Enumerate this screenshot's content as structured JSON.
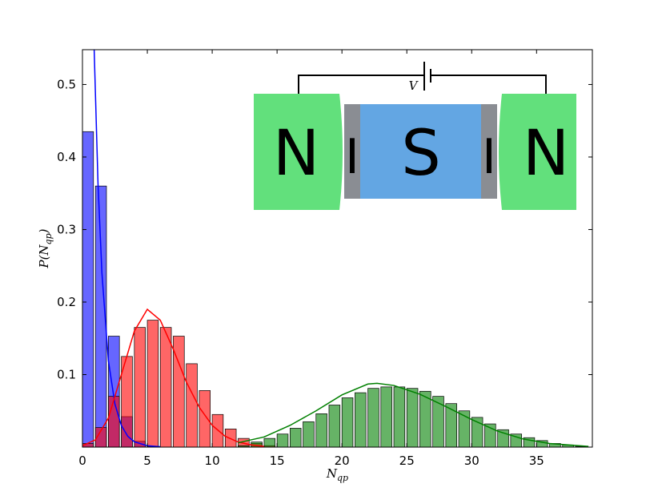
{
  "chart_data": {
    "type": "histogram",
    "xlabel": [
      "N",
      "qp"
    ],
    "ylabel": [
      "P(N",
      "qp",
      ")"
    ],
    "xlim": [
      0,
      39.3
    ],
    "ylim": [
      0,
      0.548
    ],
    "xticks": [
      0,
      5,
      10,
      15,
      20,
      25,
      30,
      35
    ],
    "yticks": [
      0.1,
      0.2,
      0.3,
      0.4,
      0.5
    ],
    "grid": false,
    "series": [
      {
        "color": "#0000ff",
        "bins": [
          0,
          1,
          2,
          3,
          4,
          5,
          6
        ],
        "values": [
          0.435,
          0.36,
          0.153,
          0.042,
          0.008,
          0.001
        ]
      },
      {
        "color": "#ff0000",
        "bins": [
          0,
          1,
          2,
          3,
          4,
          5,
          6,
          7,
          8,
          9,
          10,
          11,
          12,
          13,
          14,
          15
        ],
        "values": [
          0.005,
          0.027,
          0.07,
          0.125,
          0.165,
          0.175,
          0.165,
          0.153,
          0.115,
          0.078,
          0.045,
          0.025,
          0.012,
          0.005,
          0.002
        ]
      },
      {
        "color": "#008000",
        "bins": [
          12,
          13,
          14,
          15,
          16,
          17,
          18,
          19,
          20,
          21,
          22,
          23,
          24,
          25,
          26,
          27,
          28,
          29,
          30,
          31,
          32,
          33,
          34,
          35,
          36,
          37,
          38,
          39
        ],
        "values": [
          0.002,
          0.007,
          0.012,
          0.018,
          0.026,
          0.035,
          0.046,
          0.058,
          0.068,
          0.075,
          0.081,
          0.083,
          0.083,
          0.081,
          0.077,
          0.07,
          0.06,
          0.05,
          0.041,
          0.032,
          0.024,
          0.018,
          0.013,
          0.009,
          0.005,
          0.003,
          0.001
        ]
      }
    ],
    "lines": [
      {
        "color": "#0000ff",
        "x": [
          0.9,
          1.2,
          1.5,
          2,
          2.5,
          3,
          3.5,
          4,
          5,
          6
        ],
        "values": [
          0.55,
          0.363,
          0.24,
          0.119,
          0.0595,
          0.0297,
          0.0148,
          0.0074,
          0.0019,
          0.0005
        ]
      },
      {
        "color": "#ff0000",
        "x": [
          0,
          1,
          2,
          3,
          4,
          5,
          6,
          7,
          8,
          9,
          10,
          11,
          12,
          13,
          14
        ],
        "values": [
          0.002,
          0.01,
          0.04,
          0.1,
          0.16,
          0.19,
          0.175,
          0.135,
          0.09,
          0.055,
          0.03,
          0.015,
          0.007,
          0.003,
          0.001
        ]
      },
      {
        "color": "#008000",
        "x": [
          12,
          14,
          16,
          18,
          20,
          22,
          22.7,
          24,
          26,
          28,
          30,
          32,
          34,
          36,
          39
        ],
        "values": [
          0.006,
          0.014,
          0.03,
          0.05,
          0.072,
          0.087,
          0.088,
          0.085,
          0.073,
          0.056,
          0.038,
          0.022,
          0.011,
          0.005,
          0.001
        ]
      }
    ],
    "annotations": [
      "N",
      "I",
      "S",
      "I",
      "N",
      "V"
    ]
  }
}
